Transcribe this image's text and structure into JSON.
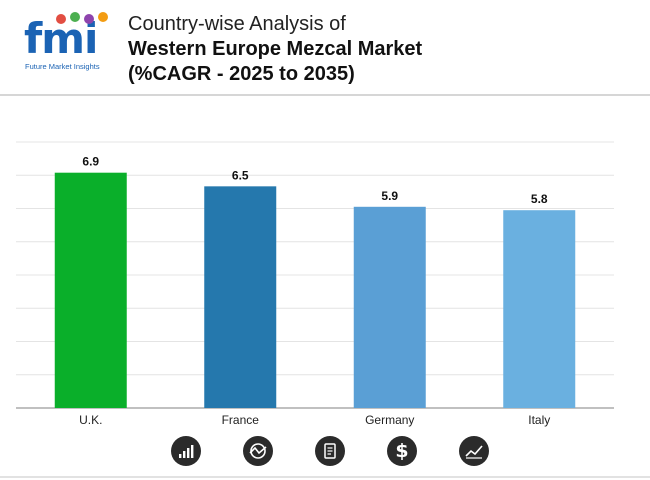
{
  "brand": {
    "logo_text": "fmi",
    "tagline": "Future Market Insights",
    "dot_colors": [
      "#e24e42",
      "#4caf50",
      "#8e44ad",
      "#f39c12"
    ]
  },
  "header": {
    "title_line1": "Country-wise Analysis of",
    "title_line2": "Western Europe Mezcal Market",
    "title_line3": "(%CAGR - 2025 to 2035)"
  },
  "chart_data": {
    "type": "bar",
    "categories": [
      "U.K.",
      "France",
      "Germany",
      "Italy"
    ],
    "values": [
      6.9,
      6.5,
      5.9,
      5.8
    ],
    "data_labels": [
      "6.9",
      "6.5",
      "5.9",
      "5.8"
    ],
    "bar_colors": [
      "#0aaf2a",
      "#2578ad",
      "#5a9fd5",
      "#6ab0e0"
    ],
    "ylim": [
      0,
      7.8
    ],
    "grid": true,
    "legend": "none"
  },
  "footer_icons": [
    "bar-growth-icon",
    "chart-circle-icon",
    "document-icon",
    "dollar-icon",
    "trend-line-icon"
  ]
}
